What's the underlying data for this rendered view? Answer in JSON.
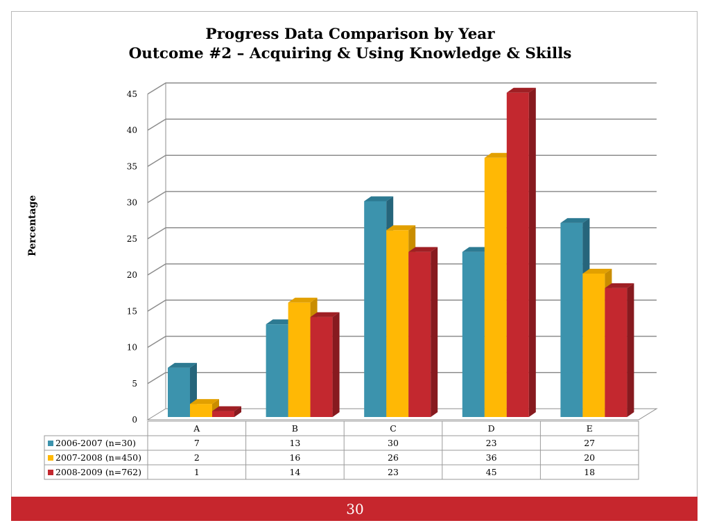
{
  "title_line1": "Progress Data Comparison by Year",
  "title_line2": "Outcome #2 – Acquiring & Using Knowledge & Skills",
  "page_number": "30",
  "colors": {
    "footer": "#c6262d",
    "series": [
      "#3c93ad",
      "#ffb805",
      "#c3282f"
    ],
    "series_side": [
      "#26657b",
      "#c98d00",
      "#871a1f"
    ],
    "series_top": [
      "#2d7a92",
      "#e2a000",
      "#9f1f24"
    ]
  },
  "chart_data": {
    "type": "bar",
    "ylabel": "Percentage",
    "xlabel": "",
    "ylim": [
      0,
      45
    ],
    "yticks": [
      0,
      5,
      10,
      15,
      20,
      25,
      30,
      35,
      40,
      45
    ],
    "grid": true,
    "legend": "data-table",
    "categories": [
      "A",
      "B",
      "C",
      "D",
      "E"
    ],
    "series": [
      {
        "name": "2006-2007 (n=30)",
        "values": [
          7,
          13,
          30,
          23,
          27
        ]
      },
      {
        "name": "2007-2008 (n=450)",
        "values": [
          2,
          16,
          26,
          36,
          20
        ]
      },
      {
        "name": "2008-2009 (n=762)",
        "values": [
          1,
          14,
          23,
          45,
          18
        ]
      }
    ]
  }
}
